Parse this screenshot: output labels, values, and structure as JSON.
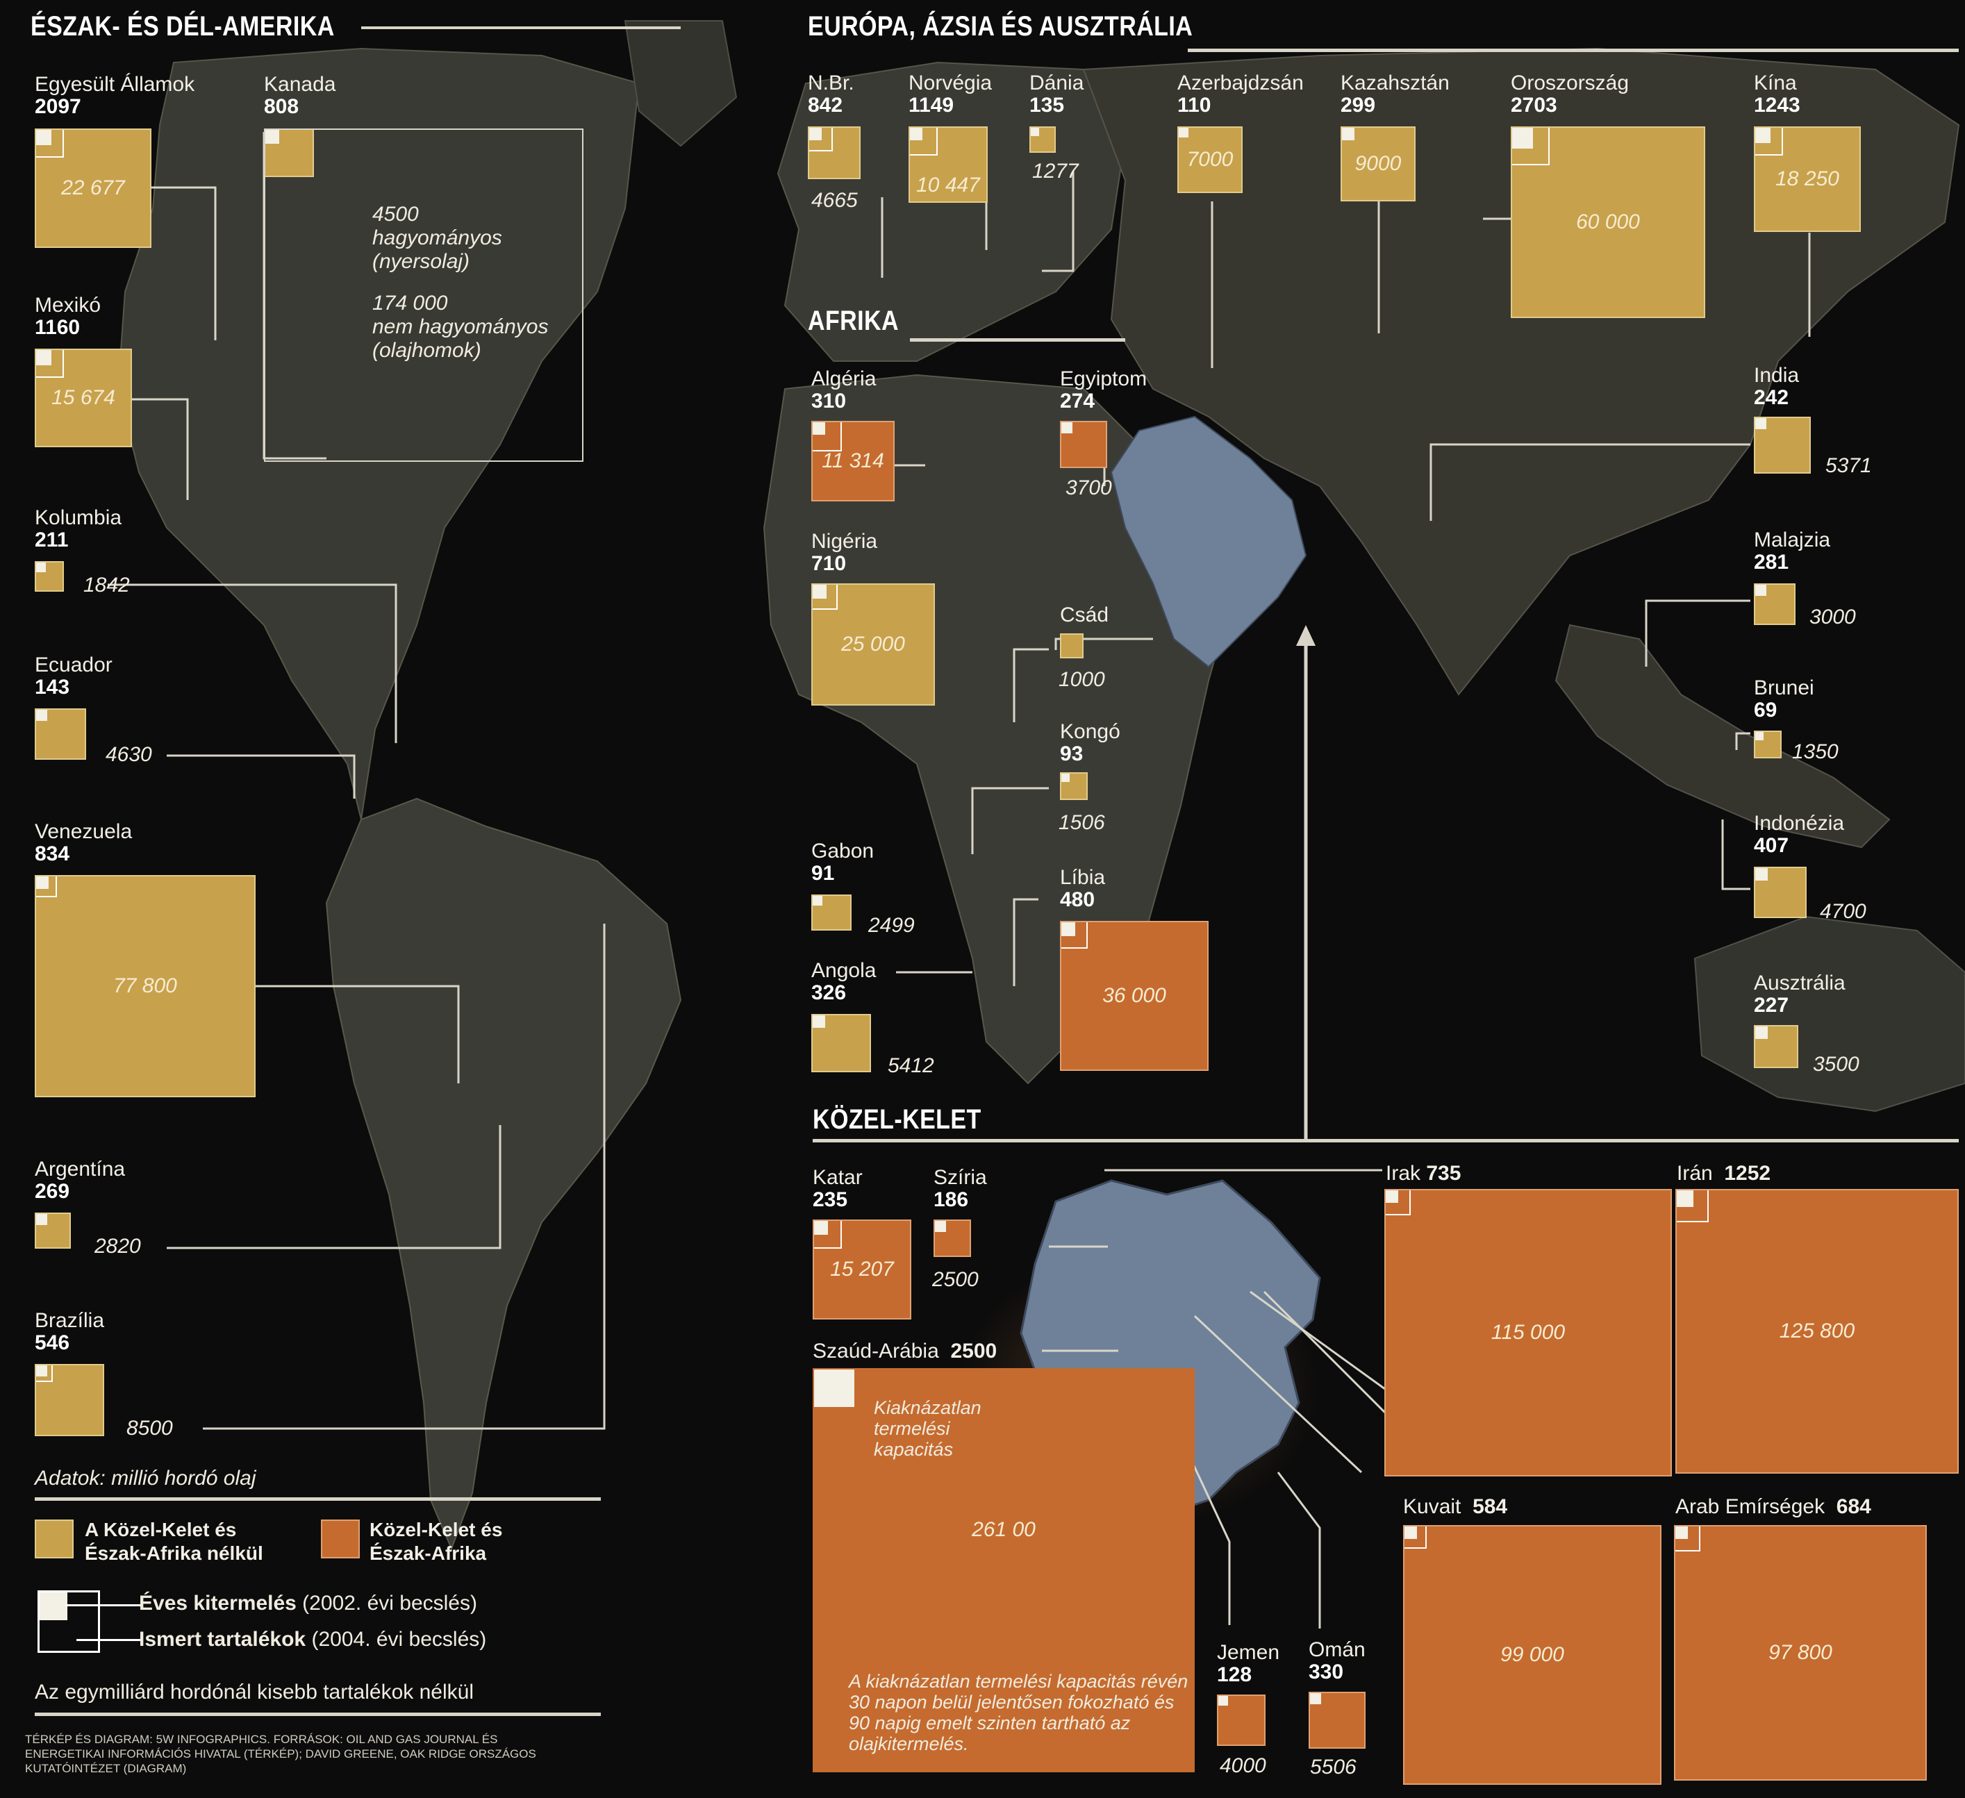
{
  "headers": {
    "americas": "ÉSZAK- ÉS DÉL-AMERIKA",
    "eurasia": "EURÓPA, ÁZSIA ÉS AUSZTRÁLIA",
    "africa": "AFRIKA",
    "mideast": "KÖZEL-KELET"
  },
  "colors": {
    "other_regions": "#c8a14c",
    "mideast_north_africa": "#c56b2f",
    "mideast_map": "#6e8199"
  },
  "americas": [
    {
      "name": "Egyesült Államok",
      "prod": "2097",
      "reserve": "22 677"
    },
    {
      "name": "Kanada",
      "prod": "808",
      "reserve": ""
    },
    {
      "name": "Mexikó",
      "prod": "1160",
      "reserve": "15 674"
    },
    {
      "name": "Kolumbia",
      "prod": "211",
      "reserve": "1842"
    },
    {
      "name": "Ecuador",
      "prod": "143",
      "reserve": "4630"
    },
    {
      "name": "Venezuela",
      "prod": "834",
      "reserve": "77 800"
    },
    {
      "name": "Argentína",
      "prod": "269",
      "reserve": "2820"
    },
    {
      "name": "Brazília",
      "prod": "546",
      "reserve": "8500"
    }
  ],
  "canada_note": {
    "conv_value": "4500",
    "conv_label": "hagyományos",
    "conv_sub": "(nyersolaj)",
    "unconv_value": "174 000",
    "unconv_label": "nem hagyományos",
    "unconv_sub": "(olajhomok)"
  },
  "eurasia": [
    {
      "name": "N.Br.",
      "prod": "842",
      "reserve": "4665"
    },
    {
      "name": "Norvégia",
      "prod": "1149",
      "reserve": "10 447"
    },
    {
      "name": "Dánia",
      "prod": "135",
      "reserve": "1277"
    },
    {
      "name": "Azerbajdzsán",
      "prod": "110",
      "reserve": "7000"
    },
    {
      "name": "Kazahsztán",
      "prod": "299",
      "reserve": "9000"
    },
    {
      "name": "Oroszország",
      "prod": "2703",
      "reserve": "60 000"
    },
    {
      "name": "Kína",
      "prod": "1243",
      "reserve": "18 250"
    },
    {
      "name": "India",
      "prod": "242",
      "reserve": "5371"
    },
    {
      "name": "Malajzia",
      "prod": "281",
      "reserve": "3000"
    },
    {
      "name": "Brunei",
      "prod": "69",
      "reserve": "1350"
    },
    {
      "name": "Indonézia",
      "prod": "407",
      "reserve": "4700"
    },
    {
      "name": "Ausztrália",
      "prod": "227",
      "reserve": "3500"
    }
  ],
  "africa": [
    {
      "name": "Algéria",
      "prod": "310",
      "reserve": "11 314"
    },
    {
      "name": "Egyiptom",
      "prod": "274",
      "reserve": "3700"
    },
    {
      "name": "Nigéria",
      "prod": "710",
      "reserve": "25 000"
    },
    {
      "name": "Csád",
      "prod": "",
      "reserve": "1000"
    },
    {
      "name": "Kongó",
      "prod": "93",
      "reserve": "1506"
    },
    {
      "name": "Gabon",
      "prod": "91",
      "reserve": "2499"
    },
    {
      "name": "Líbia",
      "prod": "480",
      "reserve": "36 000"
    },
    {
      "name": "Angola",
      "prod": "326",
      "reserve": "5412"
    }
  ],
  "mideast": [
    {
      "name": "Katar",
      "prod": "235",
      "reserve": "15 207"
    },
    {
      "name": "Szíria",
      "prod": "186",
      "reserve": "2500"
    },
    {
      "name": "Irak",
      "prod": "735",
      "reserve": "115 000"
    },
    {
      "name": "Irán",
      "prod": "1252",
      "reserve": "125 800"
    },
    {
      "name": "Szaúd-Arábia",
      "prod": "2500",
      "reserve": "261 00"
    },
    {
      "name": "Kuvait",
      "prod": "584",
      "reserve": "99 000"
    },
    {
      "name": "Arab Emírségek",
      "prod": "684",
      "reserve": "97 800"
    },
    {
      "name": "Jemen",
      "prod": "128",
      "reserve": "4000"
    },
    {
      "name": "Omán",
      "prod": "330",
      "reserve": "5506"
    }
  ],
  "saudi_notes": {
    "spare_label": "Kiaknázatlan termelési kapacitás",
    "paragraph": "A kiaknázatlan termelési kapacitás révén 30 napon belül jelentősen fokozható és 90 napig emelt szinten tartható az olajkitermelés."
  },
  "legend": {
    "units": "Adatok: millió hordó olaj",
    "yellow_label": "A Közel-Kelet és Észak-Afrika nélkül",
    "orange_label": "Közel-Kelet és Észak-Afrika",
    "annual_bold": "Éves kitermelés",
    "annual_rest": " (2002. évi becslés)",
    "reserves_bold": "Ismert tartalékok",
    "reserves_rest": " (2004. évi becslés)",
    "note": "Az egymilliárd hordónál kisebb tartalékok nélkül",
    "credits": "TÉRKÉP ÉS DIAGRAM: 5W INFOGRAPHICS. FORRÁSOK: OIL AND GAS JOURNAL ÉS ENERGETIKAI INFORMÁCIÓS HIVATAL (TÉRKÉP); DAVID GREENE, OAK RIDGE ORSZÁGOS KUTATÓINTÉZET (DIAGRAM)"
  }
}
